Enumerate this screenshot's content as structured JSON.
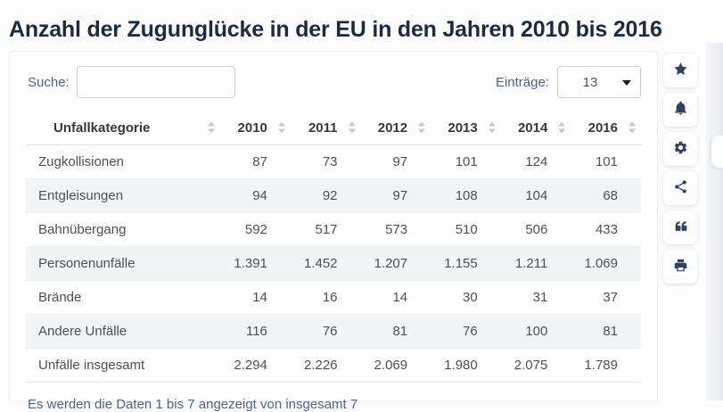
{
  "page": {
    "title": "Anzahl der Zugunglücke in der EU in den Jahren 2010 bis 2016"
  },
  "controls": {
    "search_label": "Suche:",
    "search_value": "",
    "entries_label": "Einträge:",
    "entries_value": "13"
  },
  "table": {
    "columns": [
      "Unfallkategorie",
      "2010",
      "2011",
      "2012",
      "2013",
      "2014",
      "2016"
    ],
    "rows": [
      {
        "label": "Zugkollisionen",
        "values": [
          "87",
          "73",
          "97",
          "101",
          "124",
          "101"
        ]
      },
      {
        "label": "Entgleisungen",
        "values": [
          "94",
          "92",
          "97",
          "108",
          "104",
          "68"
        ]
      },
      {
        "label": "Bahnübergang",
        "values": [
          "592",
          "517",
          "573",
          "510",
          "506",
          "433"
        ]
      },
      {
        "label": "Personenunfälle",
        "values": [
          "1.391",
          "1.452",
          "1.207",
          "1.155",
          "1.211",
          "1.069"
        ]
      },
      {
        "label": "Brände",
        "values": [
          "14",
          "16",
          "14",
          "30",
          "31",
          "37"
        ]
      },
      {
        "label": "Andere Unfälle",
        "values": [
          "116",
          "76",
          "81",
          "76",
          "100",
          "81"
        ]
      },
      {
        "label": "Unfälle insgesamt",
        "values": [
          "2.294",
          "2.226",
          "2.069",
          "1.980",
          "2.075",
          "1.789"
        ]
      }
    ]
  },
  "footer": {
    "info": "Es werden die Daten 1 bis 7 angezeigt von insgesamt 7"
  },
  "toolbar": {
    "icons": [
      "star-icon",
      "bell-icon",
      "gear-icon",
      "share-icon",
      "quote-icon",
      "print-icon"
    ]
  },
  "colors": {
    "title_navy": "#1c2b42",
    "label_blue": "#49648a",
    "icon_navy": "#2d4366",
    "stripe": "#f2f5f7"
  }
}
